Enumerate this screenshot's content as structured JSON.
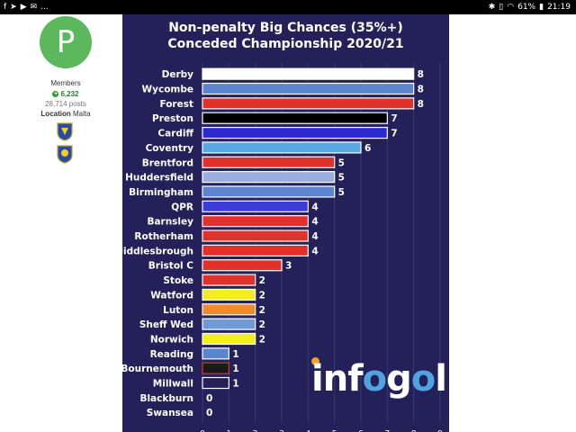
{
  "statusbar": {
    "left_icons": [
      "facebook-icon",
      "telegram-icon",
      "youtube-icon",
      "mail-icon"
    ],
    "left_more": "...",
    "battery": "61%",
    "time": "21:19"
  },
  "profile": {
    "avatar_letter": "P",
    "avatar_color": "#5cb85c",
    "group": "Members",
    "reputation": "6,232",
    "posts": "28,714 posts",
    "location_label": "Location",
    "location_value": "Malta"
  },
  "chart_data": {
    "type": "bar",
    "orientation": "horizontal",
    "title_line1": "Non-penalty Big Chances (35%+)",
    "title_line2": "Conceded Championship 2020/21",
    "categories": [
      "Derby",
      "Wycombe",
      "Forest",
      "Preston",
      "Cardiff",
      "Coventry",
      "Brentford",
      "Huddersfield",
      "Birmingham",
      "QPR",
      "Barnsley",
      "Rotherham",
      "Middlesbrough",
      "Bristol C",
      "Stoke",
      "Watford",
      "Luton",
      "Sheff Wed",
      "Norwich",
      "Reading",
      "Bournemouth",
      "Millwall",
      "Blackburn",
      "Swansea"
    ],
    "values": [
      8,
      8,
      8,
      7,
      7,
      6,
      5,
      5,
      5,
      4,
      4,
      4,
      4,
      3,
      2,
      2,
      2,
      2,
      2,
      1,
      1,
      1,
      0,
      0
    ],
    "colors": [
      "#ffffff",
      "#5b86cf",
      "#e0322b",
      "#000000",
      "#2a2ad0",
      "#58a8e6",
      "#e0322b",
      "#9aaee0",
      "#5b86cf",
      "#3c3cd6",
      "#e0322b",
      "#e0322b",
      "#e0322b",
      "#e0322b",
      "#e0322b",
      "#f5ee1e",
      "#f08a2a",
      "#6f9ad6",
      "#f5ee1e",
      "#5b86cf",
      "#1a1a1a",
      "#24215a",
      "#24215a",
      "#24215a"
    ],
    "outline_colors": [
      "#ffffff",
      "#ffffff",
      "#ffffff",
      "#ffffff",
      "#ffffff",
      "#ffffff",
      "#ffffff",
      "#ffffff",
      "#ffffff",
      "#ffffff",
      "#ffffff",
      "#ffffff",
      "#ffffff",
      "#ffffff",
      "#ffffff",
      "#ffffff",
      "#ffffff",
      "#ffffff",
      "#ffffff",
      "#ffffff",
      "#e0322b",
      "#ffffff",
      "#ffffff",
      "#ffffff"
    ],
    "xticks": [
      0,
      1,
      2,
      3,
      4,
      5,
      6,
      7,
      8,
      9
    ],
    "xlim": [
      0,
      9
    ],
    "grid": true,
    "background": "#24215a"
  },
  "logo": {
    "text_before": "inf",
    "text_o": "o",
    "text_mid": "g",
    "text_o2": "o",
    "text_after": "l"
  }
}
